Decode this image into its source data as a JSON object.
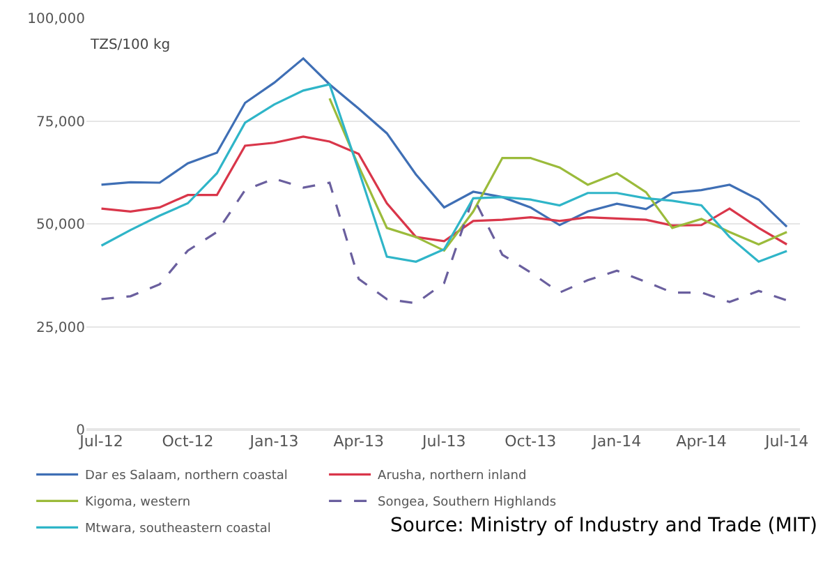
{
  "chart_data": {
    "type": "line",
    "ylabel": "TZS/100 kg",
    "x": [
      "2012-07",
      "2012-08",
      "2012-09",
      "2012-10",
      "2012-11",
      "2012-12",
      "2013-01",
      "2013-02",
      "2013-03",
      "2013-04",
      "2013-05",
      "2013-06",
      "2013-07",
      "2013-08",
      "2013-09",
      "2013-10",
      "2013-11",
      "2013-12",
      "2014-01",
      "2014-02",
      "2014-03",
      "2014-04",
      "2014-05",
      "2014-06",
      "2014-07"
    ],
    "series": [
      {
        "name": "Dar es Salaam, northern coastal",
        "color": "#3f6fb5",
        "values": [
          59500,
          60100,
          60000,
          64700,
          67300,
          79400,
          84300,
          90200,
          83900,
          78000,
          72000,
          62000,
          54000,
          57800,
          56500,
          54000,
          49700,
          53000,
          54900,
          53600,
          57500,
          58200,
          59500,
          55900,
          49300
        ]
      },
      {
        "name": "Arusha, northern inland",
        "color": "#d9364a",
        "values": [
          53700,
          53000,
          54000,
          57000,
          57000,
          69000,
          69700,
          71200,
          70000,
          67000,
          55000,
          46800,
          45800,
          50700,
          51000,
          51600,
          50700,
          51600,
          51300,
          51000,
          49600,
          49700,
          53700,
          49000,
          45000
        ]
      },
      {
        "name": "Kigoma, western",
        "color": "#9bbb3b",
        "values": [
          null,
          null,
          null,
          null,
          null,
          null,
          null,
          null,
          80500,
          64000,
          49000,
          46800,
          43500,
          53000,
          66000,
          66000,
          63700,
          59500,
          62300,
          57700,
          49000,
          51200,
          48000,
          45000,
          48000
        ]
      },
      {
        "name": "Songea, Southern Highlands",
        "color": "#6a5f9e",
        "line_style": "dashed",
        "values": [
          31700,
          32400,
          35300,
          43500,
          48000,
          58200,
          61000,
          58800,
          60000,
          36600,
          31700,
          30700,
          35600,
          56500,
          42500,
          38200,
          33300,
          36300,
          38600,
          35900,
          33300,
          33300,
          31000,
          33700,
          31400
        ]
      },
      {
        "name": "Mtwara, southeastern coastal",
        "color": "#2fb5c8",
        "values": [
          44700,
          48500,
          52000,
          55000,
          62300,
          74600,
          79000,
          82400,
          83900,
          63000,
          42000,
          40800,
          43800,
          56200,
          56500,
          55900,
          54500,
          57500,
          57500,
          56200,
          55600,
          54500,
          46800,
          40800,
          43400
        ]
      }
    ],
    "xlim": [
      "2012-06-15",
      "2014-07-15"
    ],
    "xticks": [
      {
        "value": "2012-07",
        "label": "Jul-12"
      },
      {
        "value": "2012-10",
        "label": "Oct-12"
      },
      {
        "value": "2013-01",
        "label": "Jan-13"
      },
      {
        "value": "2013-04",
        "label": "Apr-13"
      },
      {
        "value": "2013-07",
        "label": "Jul-13"
      },
      {
        "value": "2013-10",
        "label": "Oct-13"
      },
      {
        "value": "2014-01",
        "label": "Jan-14"
      },
      {
        "value": "2014-04",
        "label": "Apr-14"
      },
      {
        "value": "2014-07",
        "label": "Jul-14"
      }
    ],
    "ylim": [
      0,
      100000
    ],
    "yticks": [
      {
        "value": 0,
        "label": "0"
      },
      {
        "value": 25000,
        "label": "25,000"
      },
      {
        "value": 50000,
        "label": "50,000"
      },
      {
        "value": 75000,
        "label": "75,000"
      },
      {
        "value": 100000,
        "label": "100,000"
      }
    ],
    "grid": "y",
    "legend": "bottom",
    "marker": "none",
    "line_style": "solid",
    "annotations": [
      "Source: Ministry of Industry and Trade (MIT)"
    ]
  }
}
